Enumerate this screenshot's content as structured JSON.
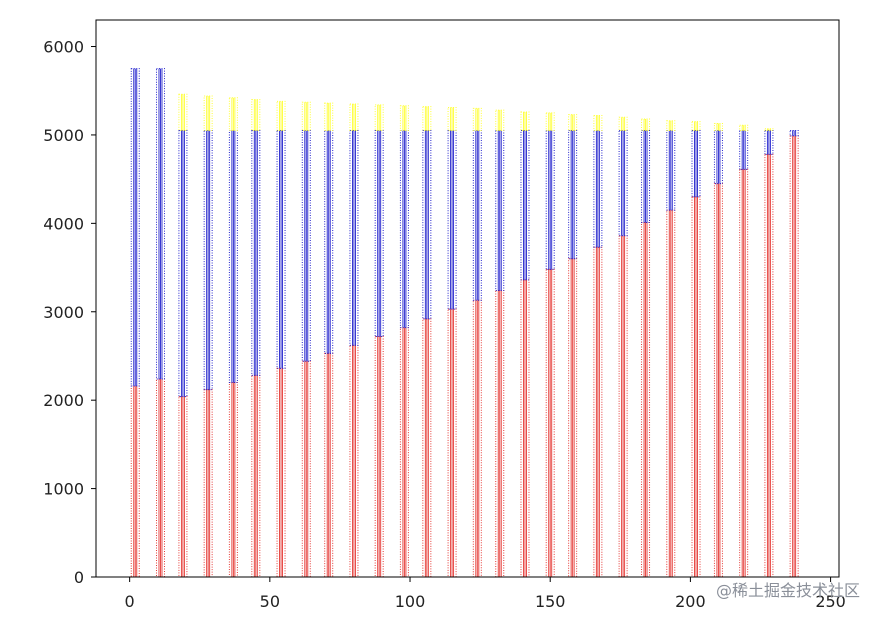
{
  "chart_data": {
    "type": "bar",
    "stacked": true,
    "x": [
      2,
      11,
      19,
      28,
      37,
      45,
      54,
      63,
      71,
      80,
      89,
      98,
      106,
      115,
      124,
      132,
      141,
      150,
      158,
      167,
      176,
      184,
      193,
      202,
      210,
      219,
      228,
      237
    ],
    "series": [
      {
        "color": "#e53935",
        "values": [
          2160,
          2240,
          2040,
          2120,
          2200,
          2280,
          2360,
          2440,
          2530,
          2620,
          2720,
          2820,
          2920,
          3030,
          3130,
          3240,
          3360,
          3480,
          3600,
          3730,
          3860,
          4010,
          4150,
          4300,
          4450,
          4610,
          4780,
          4990
        ]
      },
      {
        "color": "#2222cc",
        "values": [
          3590,
          3510,
          3010,
          2930,
          2850,
          2770,
          2690,
          2610,
          2520,
          2430,
          2330,
          2230,
          2130,
          2020,
          1920,
          1810,
          1690,
          1570,
          1450,
          1320,
          1190,
          1040,
          900,
          750,
          600,
          440,
          270,
          60
        ]
      },
      {
        "color": "#ffff33",
        "values": [
          0,
          0,
          410,
          390,
          370,
          350,
          330,
          320,
          310,
          300,
          290,
          280,
          270,
          260,
          250,
          230,
          210,
          200,
          180,
          170,
          150,
          130,
          110,
          100,
          80,
          60,
          20,
          0
        ]
      }
    ],
    "xlim": [
      -12,
      253
    ],
    "ylim": [
      0,
      6300
    ],
    "xticks": [
      0,
      50,
      100,
      150,
      200,
      250
    ],
    "yticks": [
      0,
      1000,
      2000,
      3000,
      4000,
      5000,
      6000
    ],
    "xtick_labels": [
      "0",
      "50",
      "100",
      "150",
      "200",
      "250"
    ],
    "ytick_labels": [
      "0",
      "1000",
      "2000",
      "3000",
      "4000",
      "5000",
      "6000"
    ],
    "title": "",
    "xlabel": "",
    "ylabel": "",
    "grid": false,
    "legend": "none"
  },
  "watermark": "@稀土掘金技术社区"
}
